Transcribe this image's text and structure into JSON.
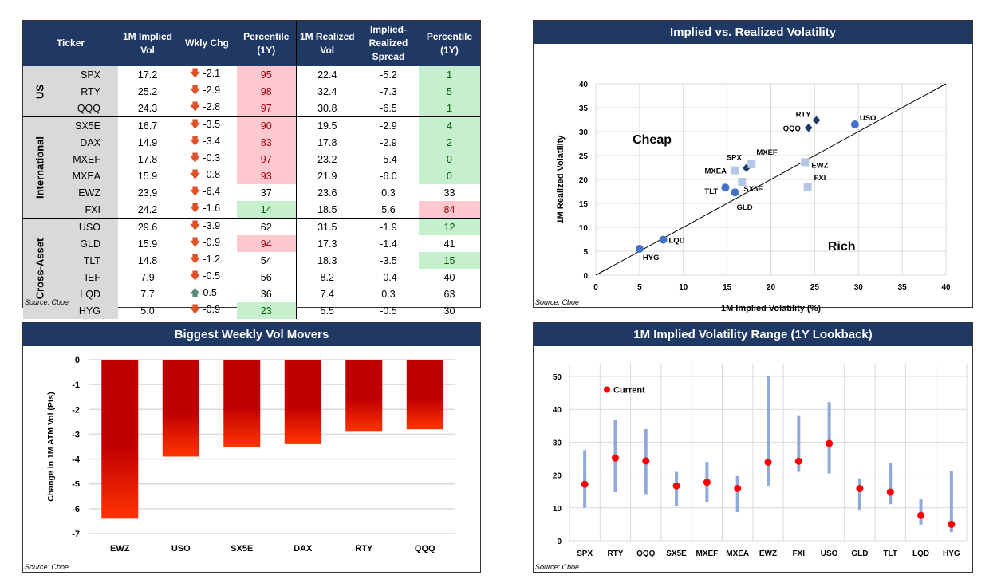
{
  "table": {
    "headers": [
      "Ticker",
      "1M Implied Vol",
      "Wkly Chg",
      "Percentile (1Y)",
      "1M Realized Vol",
      "Implied-Realized Spread",
      "Percentile (1Y)"
    ],
    "groups": [
      {
        "name": "US",
        "rows": [
          {
            "ticker": "SPX",
            "iv": "17.2",
            "chg": "-2.1",
            "dir": "down",
            "pct1": "95",
            "hl1": "red",
            "rv": "22.4",
            "spread": "-5.2",
            "pct2": "1",
            "hl2": "green"
          },
          {
            "ticker": "RTY",
            "iv": "25.2",
            "chg": "-2.9",
            "dir": "down",
            "pct1": "98",
            "hl1": "red",
            "rv": "32.4",
            "spread": "-7.3",
            "pct2": "5",
            "hl2": "green"
          },
          {
            "ticker": "QQQ",
            "iv": "24.3",
            "chg": "-2.8",
            "dir": "down",
            "pct1": "97",
            "hl1": "red",
            "rv": "30.8",
            "spread": "-6.5",
            "pct2": "1",
            "hl2": "green"
          }
        ]
      },
      {
        "name": "International",
        "rows": [
          {
            "ticker": "SX5E",
            "iv": "16.7",
            "chg": "-3.5",
            "dir": "down",
            "pct1": "90",
            "hl1": "red",
            "rv": "19.5",
            "spread": "-2.9",
            "pct2": "4",
            "hl2": "green"
          },
          {
            "ticker": "DAX",
            "iv": "14.9",
            "chg": "-3.4",
            "dir": "down",
            "pct1": "83",
            "hl1": "red",
            "rv": "17.8",
            "spread": "-2.9",
            "pct2": "2",
            "hl2": "green"
          },
          {
            "ticker": "MXEF",
            "iv": "17.8",
            "chg": "-0.3",
            "dir": "down",
            "pct1": "97",
            "hl1": "red",
            "rv": "23.2",
            "spread": "-5.4",
            "pct2": "0",
            "hl2": "green"
          },
          {
            "ticker": "MXEA",
            "iv": "15.9",
            "chg": "-0.8",
            "dir": "down",
            "pct1": "93",
            "hl1": "red",
            "rv": "21.9",
            "spread": "-6.0",
            "pct2": "0",
            "hl2": "green"
          },
          {
            "ticker": "EWZ",
            "iv": "23.9",
            "chg": "-6.4",
            "dir": "down",
            "pct1": "37",
            "hl1": "",
            "rv": "23.6",
            "spread": "0.3",
            "pct2": "33",
            "hl2": ""
          },
          {
            "ticker": "FXI",
            "iv": "24.2",
            "chg": "-1.6",
            "dir": "down",
            "pct1": "14",
            "hl1": "green",
            "rv": "18.5",
            "spread": "5.6",
            "pct2": "84",
            "hl2": "red"
          }
        ]
      },
      {
        "name": "Cross-Asset",
        "rows": [
          {
            "ticker": "USO",
            "iv": "29.6",
            "chg": "-3.9",
            "dir": "down",
            "pct1": "62",
            "hl1": "",
            "rv": "31.5",
            "spread": "-1.9",
            "pct2": "12",
            "hl2": "green"
          },
          {
            "ticker": "GLD",
            "iv": "15.9",
            "chg": "-0.9",
            "dir": "down",
            "pct1": "94",
            "hl1": "red",
            "rv": "17.3",
            "spread": "-1.4",
            "pct2": "41",
            "hl2": ""
          },
          {
            "ticker": "TLT",
            "iv": "14.8",
            "chg": "-1.2",
            "dir": "down",
            "pct1": "54",
            "hl1": "",
            "rv": "18.3",
            "spread": "-3.5",
            "pct2": "15",
            "hl2": "green"
          },
          {
            "ticker": "IEF",
            "iv": "7.9",
            "chg": "-0.5",
            "dir": "down",
            "pct1": "56",
            "hl1": "",
            "rv": "8.2",
            "spread": "-0.4",
            "pct2": "40",
            "hl2": ""
          },
          {
            "ticker": "LQD",
            "iv": "7.7",
            "chg": "0.5",
            "dir": "up",
            "pct1": "36",
            "hl1": "",
            "rv": "7.4",
            "spread": "0.3",
            "pct2": "63",
            "hl2": ""
          },
          {
            "ticker": "HYG",
            "iv": "5.0",
            "chg": "-0.9",
            "dir": "down",
            "pct1": "23",
            "hl1": "green",
            "rv": "5.5",
            "spread": "-0.5",
            "pct2": "30",
            "hl2": ""
          }
        ]
      }
    ],
    "source": "Source: Cboe"
  },
  "chart_data": [
    {
      "type": "scatter",
      "title": "Implied vs. Realized Volatility",
      "xlabel": "1M Implied Volatility (%)",
      "ylabel": "1M Realized Volatility",
      "xlim": [
        0,
        40
      ],
      "ylim": [
        0,
        40
      ],
      "xticks": [
        0,
        5,
        10,
        15,
        20,
        25,
        30,
        35,
        40
      ],
      "yticks": [
        0,
        5,
        10,
        15,
        20,
        25,
        30,
        35,
        40
      ],
      "grid": true,
      "annotations": [
        "Cheap",
        "Rich"
      ],
      "reference_line": "y = x",
      "series": [
        {
          "marker": "diamond",
          "color": "#1f3864",
          "points": [
            {
              "label": "SPX",
              "x": 17.2,
              "y": 22.4
            },
            {
              "label": "RTY",
              "x": 25.2,
              "y": 32.4
            },
            {
              "label": "QQQ",
              "x": 24.3,
              "y": 30.8
            }
          ]
        },
        {
          "marker": "square",
          "color": "#b4c7e7",
          "points": [
            {
              "label": "SX5E",
              "x": 16.7,
              "y": 19.5
            },
            {
              "label": "MXEF",
              "x": 17.8,
              "y": 23.2
            },
            {
              "label": "MXEA",
              "x": 15.9,
              "y": 21.9
            },
            {
              "label": "EWZ",
              "x": 23.9,
              "y": 23.6
            },
            {
              "label": "FXI",
              "x": 24.2,
              "y": 18.5
            }
          ]
        },
        {
          "marker": "circle",
          "color": "#4472c4",
          "points": [
            {
              "label": "USO",
              "x": 29.6,
              "y": 31.5
            },
            {
              "label": "GLD",
              "x": 15.9,
              "y": 17.3
            },
            {
              "label": "TLT",
              "x": 14.8,
              "y": 18.3
            },
            {
              "label": "LQD",
              "x": 7.7,
              "y": 7.4
            },
            {
              "label": "HYG",
              "x": 5.0,
              "y": 5.5
            }
          ]
        }
      ],
      "source": "Source: Cboe"
    },
    {
      "type": "bar",
      "title": "Biggest Weekly Vol Movers",
      "ylabel": "Change in 1M ATM Vol (Pts)",
      "ylim": [
        -7,
        0
      ],
      "yticks": [
        0,
        -1,
        -2,
        -3,
        -4,
        -5,
        -6,
        -7
      ],
      "categories": [
        "EWZ",
        "USO",
        "SX5E",
        "DAX",
        "RTY",
        "QQQ"
      ],
      "values": [
        -6.4,
        -3.9,
        -3.5,
        -3.4,
        -2.9,
        -2.8
      ],
      "color": "#c00000",
      "grid": true,
      "source": "Source: Cboe"
    },
    {
      "type": "range",
      "title": "1M Implied Volatility Range (1Y Lookback)",
      "ylim": [
        0,
        50
      ],
      "yticks": [
        0,
        10,
        20,
        30,
        40,
        50
      ],
      "legend": "Current",
      "legend_position": "top-left",
      "categories": [
        "SPX",
        "RTY",
        "QQQ",
        "SX5E",
        "MXEF",
        "MXEA",
        "EWZ",
        "FXI",
        "USO",
        "GLD",
        "TLT",
        "LQD",
        "HYG"
      ],
      "low": [
        10.0,
        14.8,
        14.0,
        10.6,
        11.7,
        8.7,
        16.7,
        21.0,
        20.5,
        9.2,
        11.1,
        4.9,
        2.6
      ],
      "high": [
        27.6,
        36.9,
        34.0,
        21.0,
        24.0,
        19.7,
        50.2,
        38.2,
        42.2,
        19.0,
        23.6,
        12.6,
        21.2
      ],
      "current": [
        17.2,
        25.2,
        24.3,
        16.7,
        17.8,
        15.9,
        23.9,
        24.2,
        29.6,
        15.9,
        14.8,
        7.7,
        5.0
      ],
      "range_color": "#8eaadb",
      "current_color": "#ff0000",
      "grid": true,
      "source": "Source: Cboe"
    }
  ]
}
